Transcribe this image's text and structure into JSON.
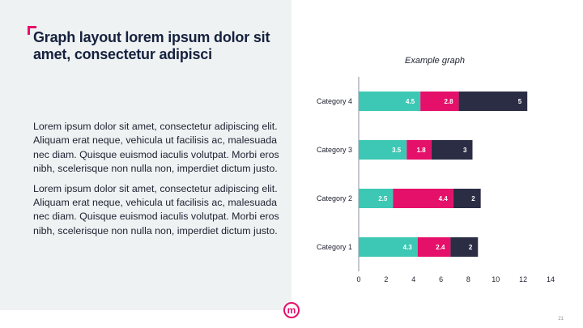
{
  "slide": {
    "title": "Graph layout lorem ipsum dolor sit amet, consectetur adipisci",
    "paragraphs": [
      "Lorem ipsum dolor sit amet, consectetur adipiscing elit. Aliquam erat neque, vehicula ut facilisis ac, malesuada nec diam. Quisque euismod iaculis volutpat. Morbi eros nibh, scelerisque non nulla non, imperdiet dictum justo.",
      "Lorem ipsum dolor sit amet, consectetur adipiscing elit. Aliquam erat neque, vehicula ut facilisis ac, malesuada nec diam. Quisque euismod iaculis volutpat. Morbi eros nibh, scelerisque non nulla non, imperdiet dictum justo."
    ],
    "logo_letter": "m",
    "page_number": "21"
  },
  "colors": {
    "accent": "#e5106a",
    "teal": "#3cc8b4",
    "navy": "#2b2d45",
    "panel": "#eef2f3"
  },
  "chart_data": {
    "type": "bar",
    "orientation": "horizontal",
    "stacked": true,
    "title": "Example graph",
    "categories": [
      "Category 1",
      "Category 2",
      "Category 3",
      "Category 4"
    ],
    "series": [
      {
        "values": [
          4.3,
          2.5,
          3.5,
          4.5
        ],
        "color": "#3cc8b4"
      },
      {
        "values": [
          2.4,
          4.4,
          1.8,
          2.8
        ],
        "color": "#e5106a"
      },
      {
        "values": [
          2,
          2,
          3,
          5
        ],
        "color": "#2b2d45"
      }
    ],
    "xlim": [
      0,
      14
    ],
    "xticks": [
      0,
      2,
      4,
      6,
      8,
      10,
      12,
      14
    ],
    "grid": false,
    "data_labels": true
  }
}
